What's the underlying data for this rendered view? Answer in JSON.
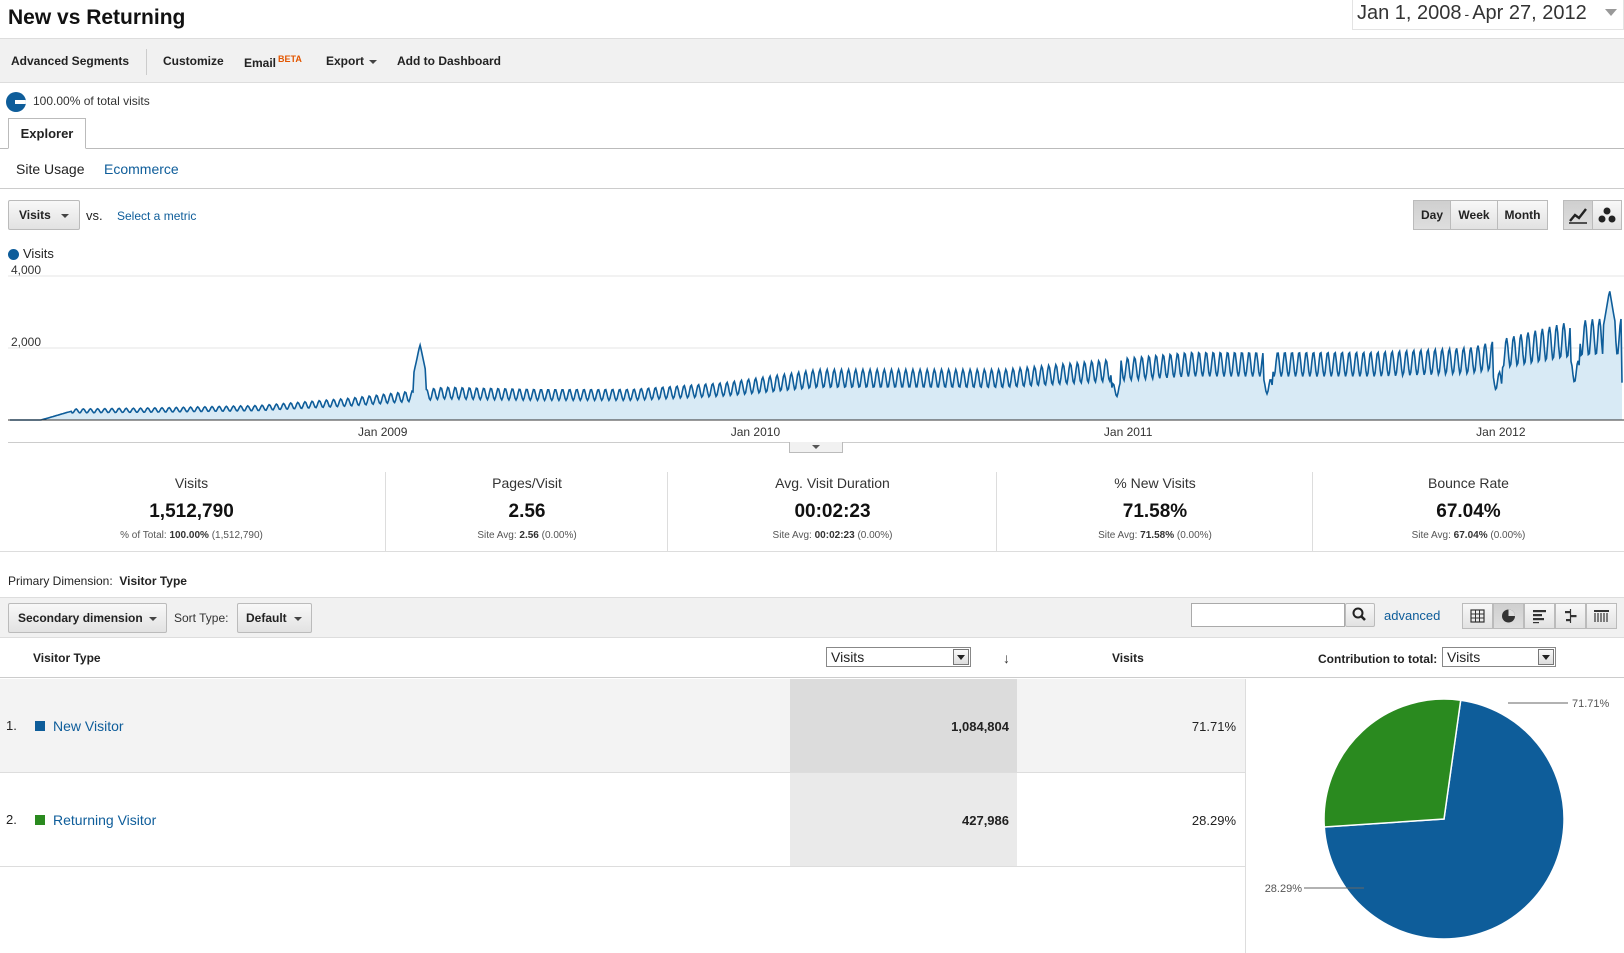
{
  "header": {
    "title": "New vs Returning",
    "date_start": "Jan 1, 2008",
    "date_sep": "-",
    "date_end": "Apr 27, 2012"
  },
  "toolbar": {
    "advanced_segments": "Advanced Segments",
    "customize": "Customize",
    "email": "Email",
    "email_badge": "BETA",
    "export": "Export",
    "add_to_dashboard": "Add to Dashboard"
  },
  "segment": {
    "label": "100.00% of total visits"
  },
  "tabs": {
    "explorer": "Explorer"
  },
  "subtabs": {
    "site_usage": "Site Usage",
    "ecommerce": "Ecommerce"
  },
  "metric_row": {
    "metric": "Visits",
    "vs": "vs.",
    "select_metric": "Select a metric",
    "periods": [
      "Day",
      "Week",
      "Month"
    ],
    "active_period": "Day"
  },
  "chart_data": {
    "type": "area",
    "series": [
      {
        "name": "Visits"
      }
    ],
    "y_ticks": [
      "4,000",
      "2,000"
    ],
    "x_ticks": [
      "Jan 2009",
      "Jan 2010",
      "Jan 2011",
      "Jan 2012"
    ],
    "ylim": [
      0,
      4000
    ],
    "color": "#0e5d9a",
    "fill": "#d8eaf5",
    "trend_monthly": [
      {
        "x": "Jan 2008",
        "y": 0
      },
      {
        "x": "Feb 2008",
        "y": 0
      },
      {
        "x": "Mar 2008",
        "y": 250
      },
      {
        "x": "Jun 2008",
        "y": 280
      },
      {
        "x": "Sep 2008",
        "y": 330
      },
      {
        "x": "Dec 2008",
        "y": 500
      },
      {
        "x": "Mar 2009",
        "y": 750
      },
      {
        "x": "Jun 2009",
        "y": 700
      },
      {
        "x": "Sep 2009",
        "y": 700
      },
      {
        "x": "Dec 2009",
        "y": 850
      },
      {
        "x": "Mar 2010",
        "y": 1150
      },
      {
        "x": "Jun 2010",
        "y": 1150
      },
      {
        "x": "Sep 2010",
        "y": 1150
      },
      {
        "x": "Dec 2010",
        "y": 1350
      },
      {
        "x": "Mar 2011",
        "y": 1550
      },
      {
        "x": "Jun 2011",
        "y": 1550
      },
      {
        "x": "Sep 2011",
        "y": 1550
      },
      {
        "x": "Dec 2011",
        "y": 1650
      },
      {
        "x": "Mar 2012",
        "y": 2200
      },
      {
        "x": "Apr 2012",
        "y": 2300
      }
    ],
    "spikes": [
      {
        "x": "Feb 2009",
        "y": 2100
      },
      {
        "x": "Apr 2012",
        "y": 3600
      }
    ]
  },
  "scorecards": [
    {
      "label": "Visits",
      "value": "1,512,790",
      "sub_prefix": "% of Total:",
      "sub_bold": "100.00%",
      "sub_rest": "(1,512,790)"
    },
    {
      "label": "Pages/Visit",
      "value": "2.56",
      "sub_prefix": "Site Avg:",
      "sub_bold": "2.56",
      "sub_rest": "(0.00%)"
    },
    {
      "label": "Avg. Visit Duration",
      "value": "00:02:23",
      "sub_prefix": "Site Avg:",
      "sub_bold": "00:02:23",
      "sub_rest": "(0.00%)"
    },
    {
      "label": "% New Visits",
      "value": "71.58%",
      "sub_prefix": "Site Avg:",
      "sub_bold": "71.58%",
      "sub_rest": "(0.00%)"
    },
    {
      "label": "Bounce Rate",
      "value": "67.04%",
      "sub_prefix": "Site Avg:",
      "sub_bold": "67.04%",
      "sub_rest": "(0.00%)"
    }
  ],
  "dimension": {
    "primary_label": "Primary Dimension:",
    "primary_value": "Visitor Type",
    "secondary": "Secondary dimension",
    "sort_label": "Sort Type:",
    "sort_value": "Default",
    "search_value": "",
    "advanced": "advanced"
  },
  "table": {
    "col_visitor_type": "Visitor Type",
    "col_metric_select": "Visits",
    "col_visits": "Visits",
    "col_contribution": "Contribution to total:",
    "contribution_select": "Visits",
    "rows": [
      {
        "num": "1.",
        "name": "New Visitor",
        "visits": "1,084,804",
        "pct": "71.71%",
        "color": "#0e5d9a"
      },
      {
        "num": "2.",
        "name": "Returning Visitor",
        "visits": "427,986",
        "pct": "28.29%",
        "color": "#2a8a1f"
      }
    ]
  },
  "pie": {
    "slices": [
      {
        "label": "71.71%",
        "value": 71.71,
        "color": "#0e5d9a"
      },
      {
        "label": "28.29%",
        "value": 28.29,
        "color": "#2a8a1f"
      }
    ]
  }
}
